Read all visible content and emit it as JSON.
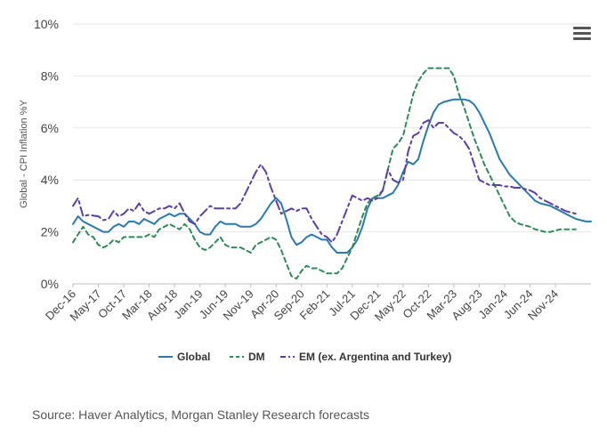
{
  "source": "Source: Haver Analytics, Morgan Stanley Research forecasts",
  "menu_icon": "hamburger-menu-icon",
  "chart_data": {
    "type": "line",
    "xlabel": "",
    "ylabel": "Global - CPI Inflation %Y",
    "ylim": [
      0,
      10
    ],
    "yticks": [
      "0%",
      "2%",
      "4%",
      "6%",
      "8%",
      "10%"
    ],
    "ytick_values": [
      0,
      2,
      4,
      6,
      8,
      10
    ],
    "xticks": [
      "Dec-16",
      "May-17",
      "Oct-17",
      "Mar-18",
      "Aug-18",
      "Jan-19",
      "Jun-19",
      "Nov-19",
      "Apr-20",
      "Sep-20",
      "Feb-21",
      "Jul-21",
      "Dec-21",
      "May-22",
      "Oct-22",
      "Mar-23",
      "Aug-23",
      "Jan-24",
      "Jun-24",
      "Nov-24"
    ],
    "grid": true,
    "legend_position": "bottom",
    "x_start": "Dec-16",
    "x_end": "Nov-24",
    "series": [
      {
        "name": "Global",
        "color": "#2a7ab0",
        "dash": "solid",
        "points": [
          [
            0,
            2.3
          ],
          [
            1,
            2.6
          ],
          [
            2,
            2.4
          ],
          [
            3,
            2.3
          ],
          [
            5,
            2.1
          ],
          [
            6,
            2.0
          ],
          [
            7,
            2.0
          ],
          [
            8,
            2.2
          ],
          [
            9,
            2.3
          ],
          [
            10,
            2.2
          ],
          [
            11,
            2.4
          ],
          [
            12,
            2.4
          ],
          [
            13,
            2.3
          ],
          [
            14,
            2.5
          ],
          [
            15,
            2.4
          ],
          [
            16,
            2.3
          ],
          [
            17,
            2.5
          ],
          [
            18,
            2.6
          ],
          [
            19,
            2.7
          ],
          [
            20,
            2.6
          ],
          [
            21,
            2.7
          ],
          [
            22,
            2.7
          ],
          [
            23,
            2.5
          ],
          [
            24,
            2.3
          ],
          [
            25,
            2.0
          ],
          [
            26,
            1.9
          ],
          [
            27,
            1.9
          ],
          [
            28,
            2.2
          ],
          [
            29,
            2.4
          ],
          [
            30,
            2.3
          ],
          [
            32,
            2.3
          ],
          [
            33,
            2.2
          ],
          [
            35,
            2.2
          ],
          [
            36,
            2.3
          ],
          [
            37,
            2.5
          ],
          [
            38,
            2.8
          ],
          [
            39,
            3.1
          ],
          [
            40,
            3.3
          ],
          [
            41,
            3.1
          ],
          [
            42,
            2.5
          ],
          [
            43,
            1.8
          ],
          [
            44,
            1.5
          ],
          [
            45,
            1.6
          ],
          [
            46,
            1.8
          ],
          [
            47,
            1.9
          ],
          [
            48,
            1.8
          ],
          [
            49,
            1.7
          ],
          [
            50,
            1.7
          ],
          [
            51,
            1.4
          ],
          [
            52,
            1.2
          ],
          [
            53,
            1.2
          ],
          [
            54,
            1.2
          ],
          [
            55,
            1.4
          ],
          [
            56,
            1.7
          ],
          [
            57,
            2.2
          ],
          [
            58,
            2.9
          ],
          [
            59,
            3.3
          ],
          [
            60,
            3.3
          ],
          [
            61,
            3.3
          ],
          [
            62,
            3.4
          ],
          [
            63,
            3.5
          ],
          [
            64,
            3.8
          ],
          [
            65,
            4.3
          ],
          [
            66,
            4.7
          ],
          [
            67,
            4.6
          ],
          [
            68,
            4.8
          ],
          [
            69,
            5.5
          ],
          [
            70,
            6.1
          ],
          [
            71,
            6.6
          ],
          [
            72,
            6.9
          ],
          [
            73,
            7.0
          ],
          [
            74,
            7.05
          ],
          [
            75,
            7.1
          ],
          [
            77,
            7.1
          ],
          [
            78,
            7.05
          ],
          [
            79,
            6.9
          ],
          [
            80,
            6.6
          ],
          [
            81,
            6.2
          ],
          [
            82,
            5.8
          ],
          [
            83,
            5.3
          ],
          [
            84,
            4.8
          ],
          [
            85,
            4.5
          ],
          [
            86,
            4.2
          ],
          [
            87,
            4.0
          ],
          [
            88,
            3.8
          ],
          [
            89,
            3.6
          ],
          [
            90,
            3.4
          ],
          [
            91,
            3.2
          ],
          [
            92,
            3.1
          ],
          [
            93,
            3.05
          ],
          [
            94,
            3.0
          ],
          [
            95,
            2.9
          ],
          [
            96,
            2.8
          ],
          [
            97,
            2.7
          ],
          [
            98,
            2.6
          ],
          [
            99,
            2.5
          ],
          [
            100,
            2.45
          ],
          [
            101,
            2.4
          ],
          [
            102,
            2.4
          ]
        ]
      },
      {
        "name": "DM",
        "color": "#2e8b57",
        "dash": "dashed",
        "points": [
          [
            0,
            1.6
          ],
          [
            1,
            1.9
          ],
          [
            2,
            2.2
          ],
          [
            3,
            1.9
          ],
          [
            4,
            1.8
          ],
          [
            5,
            1.5
          ],
          [
            6,
            1.4
          ],
          [
            7,
            1.5
          ],
          [
            8,
            1.7
          ],
          [
            9,
            1.6
          ],
          [
            10,
            1.8
          ],
          [
            11,
            1.8
          ],
          [
            12,
            1.8
          ],
          [
            13,
            1.8
          ],
          [
            14,
            1.8
          ],
          [
            15,
            1.9
          ],
          [
            16,
            1.8
          ],
          [
            17,
            2.1
          ],
          [
            18,
            2.2
          ],
          [
            19,
            2.3
          ],
          [
            20,
            2.2
          ],
          [
            21,
            2.1
          ],
          [
            22,
            2.3
          ],
          [
            23,
            2.1
          ],
          [
            24,
            1.7
          ],
          [
            25,
            1.4
          ],
          [
            26,
            1.3
          ],
          [
            27,
            1.4
          ],
          [
            28,
            1.6
          ],
          [
            29,
            1.8
          ],
          [
            30,
            1.5
          ],
          [
            31,
            1.4
          ],
          [
            33,
            1.4
          ],
          [
            34,
            1.3
          ],
          [
            35,
            1.2
          ],
          [
            36,
            1.5
          ],
          [
            37,
            1.6
          ],
          [
            38,
            1.7
          ],
          [
            39,
            1.8
          ],
          [
            40,
            1.7
          ],
          [
            41,
            1.3
          ],
          [
            42,
            0.8
          ],
          [
            43,
            0.3
          ],
          [
            44,
            0.2
          ],
          [
            45,
            0.5
          ],
          [
            46,
            0.7
          ],
          [
            47,
            0.6
          ],
          [
            48,
            0.6
          ],
          [
            49,
            0.5
          ],
          [
            50,
            0.4
          ],
          [
            51,
            0.4
          ],
          [
            52,
            0.4
          ],
          [
            53,
            0.6
          ],
          [
            54,
            1.0
          ],
          [
            55,
            1.4
          ],
          [
            56,
            2.0
          ],
          [
            57,
            2.6
          ],
          [
            58,
            3.1
          ],
          [
            59,
            3.3
          ],
          [
            60,
            3.4
          ],
          [
            61,
            3.6
          ],
          [
            62,
            4.4
          ],
          [
            63,
            5.2
          ],
          [
            64,
            5.4
          ],
          [
            65,
            5.7
          ],
          [
            66,
            6.5
          ],
          [
            67,
            7.3
          ],
          [
            68,
            7.8
          ],
          [
            69,
            8.1
          ],
          [
            70,
            8.3
          ],
          [
            71,
            8.3
          ],
          [
            73,
            8.3
          ],
          [
            74,
            8.3
          ],
          [
            75,
            8.0
          ],
          [
            76,
            7.3
          ],
          [
            77,
            6.8
          ],
          [
            78,
            6.2
          ],
          [
            79,
            5.6
          ],
          [
            80,
            5.1
          ],
          [
            81,
            4.6
          ],
          [
            82,
            4.2
          ],
          [
            83,
            3.8
          ],
          [
            84,
            3.4
          ],
          [
            85,
            3.0
          ],
          [
            86,
            2.6
          ],
          [
            87,
            2.4
          ],
          [
            88,
            2.3
          ],
          [
            89,
            2.25
          ],
          [
            90,
            2.2
          ],
          [
            91,
            2.1
          ],
          [
            92,
            2.05
          ],
          [
            93,
            2.0
          ],
          [
            94,
            2.0
          ],
          [
            95,
            2.05
          ],
          [
            96,
            2.1
          ],
          [
            98,
            2.1
          ],
          [
            99,
            2.1
          ]
        ]
      },
      {
        "name": "EM (ex. Argentina and Turkey)",
        "color": "#5b3ea6",
        "dash": "dashdot",
        "points": [
          [
            0,
            3.0
          ],
          [
            1,
            3.3
          ],
          [
            2,
            2.6
          ],
          [
            3,
            2.65
          ],
          [
            5,
            2.6
          ],
          [
            6,
            2.45
          ],
          [
            7,
            2.5
          ],
          [
            8,
            2.8
          ],
          [
            9,
            2.6
          ],
          [
            10,
            2.7
          ],
          [
            11,
            2.9
          ],
          [
            12,
            2.8
          ],
          [
            13,
            3.1
          ],
          [
            14,
            2.8
          ],
          [
            15,
            2.7
          ],
          [
            16,
            2.8
          ],
          [
            17,
            2.9
          ],
          [
            18,
            2.9
          ],
          [
            19,
            3.0
          ],
          [
            20,
            2.9
          ],
          [
            21,
            3.1
          ],
          [
            22,
            2.7
          ],
          [
            23,
            2.4
          ],
          [
            24,
            2.3
          ],
          [
            25,
            2.6
          ],
          [
            26,
            2.8
          ],
          [
            27,
            3.0
          ],
          [
            28,
            2.9
          ],
          [
            30,
            2.9
          ],
          [
            32,
            2.9
          ],
          [
            33,
            3.1
          ],
          [
            34,
            3.5
          ],
          [
            35,
            3.9
          ],
          [
            36,
            4.3
          ],
          [
            37,
            4.6
          ],
          [
            38,
            4.3
          ],
          [
            39,
            3.7
          ],
          [
            40,
            3.2
          ],
          [
            41,
            2.7
          ],
          [
            42,
            2.8
          ],
          [
            43,
            2.9
          ],
          [
            44,
            2.8
          ],
          [
            45,
            2.9
          ],
          [
            46,
            2.9
          ],
          [
            47,
            2.5
          ],
          [
            48,
            2.2
          ],
          [
            49,
            1.9
          ],
          [
            50,
            1.8
          ],
          [
            51,
            1.6
          ],
          [
            52,
            1.9
          ],
          [
            53,
            2.4
          ],
          [
            54,
            2.9
          ],
          [
            55,
            3.4
          ],
          [
            56,
            3.3
          ],
          [
            57,
            3.2
          ],
          [
            58,
            3.3
          ],
          [
            59,
            3.2
          ],
          [
            60,
            3.3
          ],
          [
            61,
            3.6
          ],
          [
            62,
            4.4
          ],
          [
            63,
            4.0
          ],
          [
            64,
            3.9
          ],
          [
            65,
            4.0
          ],
          [
            66,
            5.1
          ],
          [
            67,
            5.7
          ],
          [
            68,
            5.8
          ],
          [
            69,
            6.2
          ],
          [
            70,
            6.3
          ],
          [
            71,
            6.0
          ],
          [
            72,
            6.2
          ],
          [
            73,
            6.2
          ],
          [
            74,
            6.0
          ],
          [
            75,
            5.8
          ],
          [
            76,
            5.7
          ],
          [
            77,
            5.5
          ],
          [
            78,
            5.2
          ],
          [
            79,
            4.6
          ],
          [
            80,
            4.0
          ],
          [
            81,
            3.9
          ],
          [
            82,
            3.8
          ],
          [
            83,
            3.8
          ],
          [
            84,
            3.8
          ],
          [
            85,
            3.75
          ],
          [
            86,
            3.75
          ],
          [
            87,
            3.7
          ],
          [
            88,
            3.7
          ],
          [
            89,
            3.65
          ],
          [
            90,
            3.6
          ],
          [
            91,
            3.5
          ],
          [
            92,
            3.3
          ],
          [
            93,
            3.2
          ],
          [
            94,
            3.1
          ],
          [
            95,
            3.0
          ],
          [
            96,
            2.9
          ],
          [
            97,
            2.8
          ],
          [
            98,
            2.75
          ],
          [
            99,
            2.7
          ]
        ]
      }
    ]
  }
}
